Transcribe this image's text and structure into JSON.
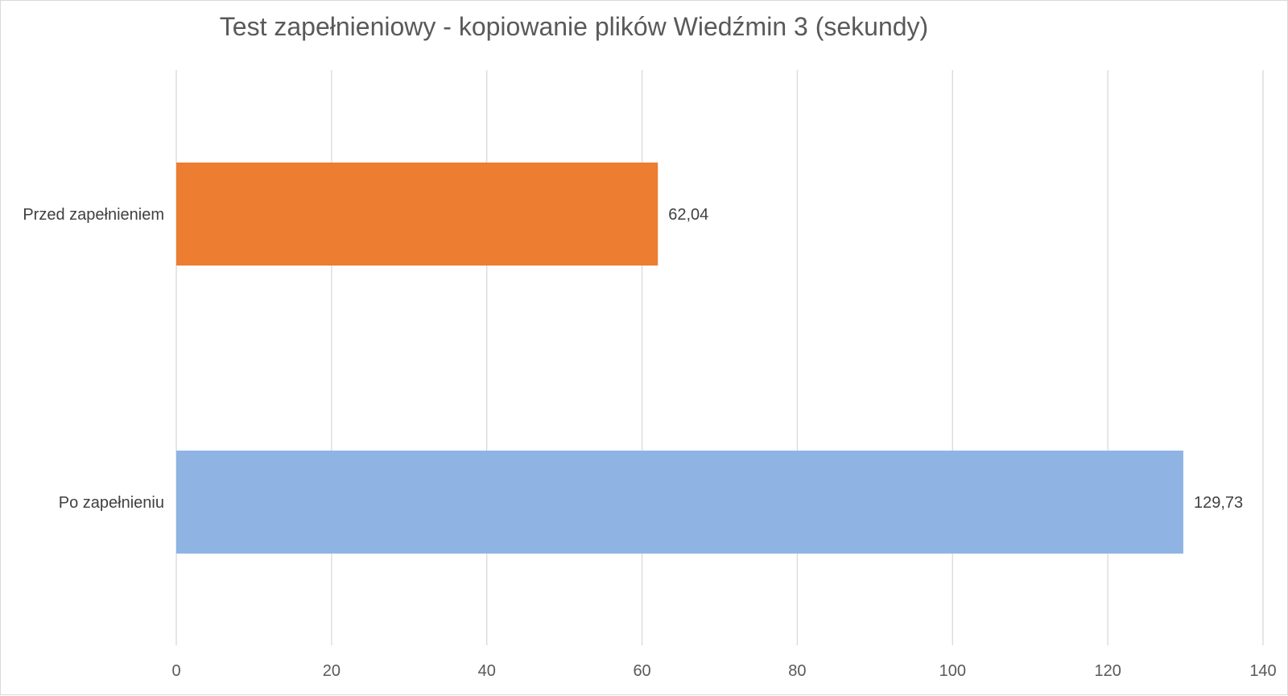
{
  "chart_data": {
    "type": "bar",
    "orientation": "horizontal",
    "title": "Test zapełnieniowy - kopiowanie plików Wiedźmin 3 (sekundy)",
    "xlabel": "",
    "ylabel": "",
    "xlim": [
      0,
      140
    ],
    "x_ticks": [
      0,
      20,
      40,
      60,
      80,
      100,
      120,
      140
    ],
    "grid": true,
    "legend": "none",
    "categories": [
      "Przed zapełnieniem",
      "Po zapełnieniu"
    ],
    "values": [
      62.04,
      129.73
    ],
    "value_labels": [
      "62,04",
      "129,73"
    ],
    "colors": [
      "#ed7d31",
      "#8fb4e3"
    ]
  }
}
